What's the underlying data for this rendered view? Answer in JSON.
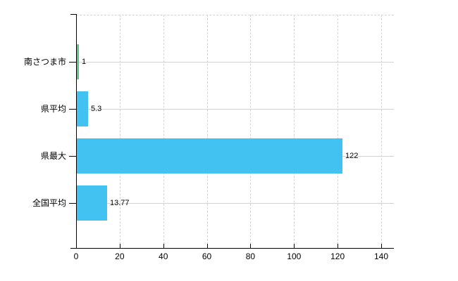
{
  "chart_data": {
    "type": "bar",
    "orientation": "horizontal",
    "title": "",
    "xlabel": "",
    "ylabel": "",
    "categories": [
      "南さつま市",
      "県平均",
      "県最大",
      "全国平均"
    ],
    "values": [
      1,
      5.3,
      122,
      13.77
    ],
    "value_labels": [
      "1",
      "5.3",
      "122",
      "13.77"
    ],
    "bar_colors": [
      "#5dc983",
      "#41c2f0",
      "#41c2f0",
      "#41c2f0"
    ],
    "xlim": [
      0,
      140
    ],
    "x_ticks": [
      0,
      20,
      40,
      60,
      80,
      100,
      120,
      140
    ],
    "legend": "none",
    "grid": {
      "vertical": "dashed",
      "horizontal": "solid-at-category-centers",
      "top_border": "dashed"
    },
    "colors": {
      "background": "#ffffff",
      "axis": "#000000",
      "grid": "#d4d4d4",
      "text": "#000000",
      "default_bar": "#41c2f0",
      "highlight_bar": "#5dc983"
    }
  }
}
